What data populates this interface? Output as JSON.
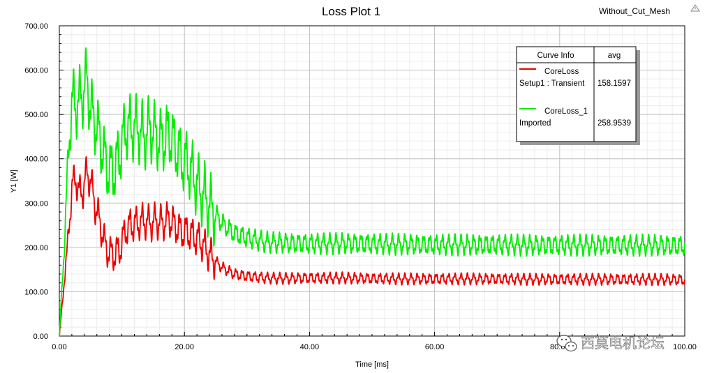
{
  "design_name": "Without_Cut_Mesh",
  "corner_icon": "warning-triangle-icon",
  "watermark": {
    "icon": "wechat-icon",
    "text": "西莫电机论坛"
  },
  "chart_data": {
    "type": "line",
    "title": "Loss Plot 1",
    "xlabel": "Time [ms]",
    "ylabel": "Y1 [W]",
    "xlim": [
      0,
      100
    ],
    "ylim": [
      0,
      700
    ],
    "x_ticks": [
      "0.00",
      "20.00",
      "40.00",
      "60.00",
      "80.00",
      "100.00"
    ],
    "y_ticks": [
      "0.00",
      "100.00",
      "200.00",
      "300.00",
      "400.00",
      "500.00",
      "600.00",
      "700.00"
    ],
    "grid": true,
    "legend_position": "top-right",
    "legend_headers": {
      "curve": "Curve Info",
      "stat": "avg"
    },
    "series": [
      {
        "name": "CoreLoss",
        "subtitle": "Setup1 : Transient",
        "avg": "158.1597",
        "color": "#ee0000",
        "osc_amplitude": 12,
        "osc_period": 1.0,
        "envelope": [
          [
            0,
            0
          ],
          [
            0.4,
            60
          ],
          [
            0.8,
            130
          ],
          [
            1.2,
            180
          ],
          [
            1.6,
            260
          ],
          [
            2.0,
            330
          ],
          [
            2.6,
            360
          ],
          [
            3.2,
            320
          ],
          [
            3.8,
            330
          ],
          [
            4.4,
            370
          ],
          [
            5.0,
            350
          ],
          [
            5.8,
            290
          ],
          [
            6.6,
            250
          ],
          [
            7.4,
            200
          ],
          [
            8.2,
            185
          ],
          [
            9.0,
            185
          ],
          [
            9.8,
            200
          ],
          [
            10.6,
            240
          ],
          [
            11.4,
            250
          ],
          [
            12.5,
            255
          ],
          [
            13.5,
            260
          ],
          [
            14.5,
            255
          ],
          [
            15.5,
            260
          ],
          [
            16.5,
            255
          ],
          [
            17.5,
            265
          ],
          [
            18.5,
            250
          ],
          [
            19.5,
            235
          ],
          [
            20.5,
            235
          ],
          [
            21.5,
            225
          ],
          [
            22.5,
            215
          ],
          [
            23.5,
            195
          ],
          [
            24.5,
            175
          ],
          [
            26,
            155
          ],
          [
            28,
            140
          ],
          [
            30,
            135
          ],
          [
            33,
            131
          ],
          [
            36,
            130
          ],
          [
            40,
            131
          ],
          [
            45,
            131
          ],
          [
            50,
            130
          ],
          [
            55,
            129
          ],
          [
            60,
            129
          ],
          [
            65,
            129
          ],
          [
            70,
            129
          ],
          [
            75,
            128
          ],
          [
            80,
            128
          ],
          [
            85,
            128
          ],
          [
            90,
            128
          ],
          [
            95,
            128
          ],
          [
            100,
            127
          ]
        ]
      },
      {
        "name": "CoreLoss_1",
        "subtitle": "Imported",
        "avg": "258.9539",
        "color": "#00ee00",
        "osc_amplitude": 22,
        "osc_period": 1.0,
        "envelope": [
          [
            0,
            0
          ],
          [
            0.4,
            100
          ],
          [
            0.8,
            210
          ],
          [
            1.2,
            330
          ],
          [
            1.6,
            450
          ],
          [
            2.0,
            530
          ],
          [
            2.6,
            520
          ],
          [
            3.2,
            530
          ],
          [
            3.8,
            550
          ],
          [
            4.4,
            580
          ],
          [
            5.0,
            510
          ],
          [
            5.8,
            480
          ],
          [
            6.6,
            440
          ],
          [
            7.4,
            390
          ],
          [
            8.2,
            370
          ],
          [
            9.0,
            380
          ],
          [
            9.8,
            420
          ],
          [
            10.6,
            470
          ],
          [
            11.4,
            470
          ],
          [
            12.5,
            470
          ],
          [
            13.5,
            450
          ],
          [
            14.5,
            470
          ],
          [
            15.5,
            450
          ],
          [
            16.5,
            440
          ],
          [
            17.5,
            460
          ],
          [
            18.5,
            430
          ],
          [
            19.5,
            400
          ],
          [
            20.5,
            390
          ],
          [
            21.5,
            360
          ],
          [
            22.5,
            330
          ],
          [
            23.5,
            310
          ],
          [
            24.5,
            285
          ],
          [
            26,
            255
          ],
          [
            28,
            232
          ],
          [
            30,
            222
          ],
          [
            33,
            212
          ],
          [
            36,
            210
          ],
          [
            40,
            208
          ],
          [
            45,
            209
          ],
          [
            50,
            208
          ],
          [
            55,
            207
          ],
          [
            60,
            206
          ],
          [
            65,
            206
          ],
          [
            70,
            206
          ],
          [
            75,
            205
          ],
          [
            80,
            205
          ],
          [
            85,
            205
          ],
          [
            90,
            205
          ],
          [
            95,
            205
          ],
          [
            100,
            204
          ]
        ]
      }
    ]
  }
}
